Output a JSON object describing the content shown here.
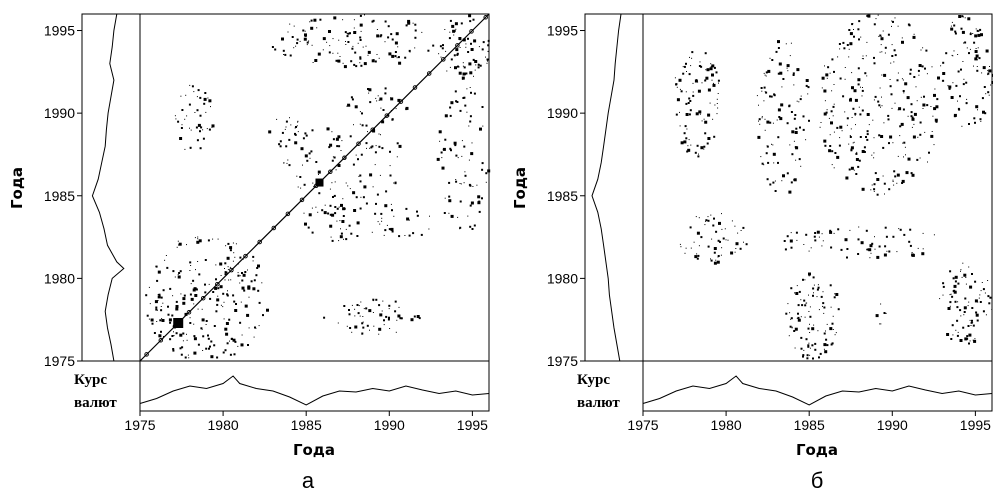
{
  "chart_data": [
    {
      "type": "heatmap",
      "panel_label": "а",
      "xlabel": "Года",
      "ylabel": "Года",
      "side_label_line1": "Курс",
      "side_label_line2": "валют",
      "xlim": [
        1975,
        1996
      ],
      "ylim": [
        1975,
        1996
      ],
      "x_ticks": [
        "1975",
        "1980",
        "1985",
        "1990",
        "1995"
      ],
      "y_ticks": [
        "1975",
        "1980",
        "1985",
        "1990",
        "1995"
      ],
      "legend": "none",
      "grid": false,
      "diagonal": true,
      "patches": [
        {
          "x0": 1975.3,
          "x1": 1982.6,
          "y0": 1975.1,
          "y1": 1982.6,
          "density": 0.35
        },
        {
          "x0": 1977.0,
          "x1": 1979.4,
          "y0": 1987.6,
          "y1": 1991.8,
          "density": 0.35
        },
        {
          "x0": 1982.7,
          "x1": 1984.6,
          "y0": 1987.8,
          "y1": 1990.4,
          "density": 0.3
        },
        {
          "x0": 1983.6,
          "x1": 1991.0,
          "y0": 1984.8,
          "y1": 1989.4,
          "density": 0.25
        },
        {
          "x0": 1983.9,
          "x1": 1992.8,
          "y0": 1982.2,
          "y1": 1984.6,
          "density": 0.3
        },
        {
          "x0": 1987.3,
          "x1": 1991.2,
          "y0": 1989.3,
          "y1": 1991.6,
          "density": 0.3
        },
        {
          "x0": 1982.8,
          "x1": 1992.8,
          "y0": 1992.9,
          "y1": 1996.0,
          "density": 0.35
        },
        {
          "x0": 1992.8,
          "x1": 1996.0,
          "y0": 1992.0,
          "y1": 1996.0,
          "density": 0.55
        },
        {
          "x0": 1992.8,
          "x1": 1996.0,
          "y0": 1982.8,
          "y1": 1991.7,
          "density": 0.25
        },
        {
          "x0": 1986.0,
          "x1": 1991.8,
          "y0": 1976.6,
          "y1": 1978.8,
          "density": 0.4
        }
      ],
      "left_series": [
        [
          1975.0,
          0.55
        ],
        [
          1976.0,
          0.5
        ],
        [
          1977.0,
          0.44
        ],
        [
          1978.0,
          0.4
        ],
        [
          1979.0,
          0.45
        ],
        [
          1980.0,
          0.52
        ],
        [
          1980.6,
          0.72
        ],
        [
          1981.0,
          0.6
        ],
        [
          1982.0,
          0.44
        ],
        [
          1983.0,
          0.38
        ],
        [
          1984.0,
          0.3
        ],
        [
          1985.0,
          0.18
        ],
        [
          1986.0,
          0.28
        ],
        [
          1987.0,
          0.34
        ],
        [
          1988.0,
          0.4
        ],
        [
          1989.0,
          0.42
        ],
        [
          1990.0,
          0.45
        ],
        [
          1991.0,
          0.5
        ],
        [
          1992.0,
          0.55
        ],
        [
          1993.0,
          0.48
        ],
        [
          1994.0,
          0.52
        ],
        [
          1995.0,
          0.55
        ],
        [
          1996.0,
          0.6
        ]
      ],
      "bottom_series": [
        [
          1975.0,
          0.85
        ],
        [
          1976.0,
          0.75
        ],
        [
          1977.0,
          0.6
        ],
        [
          1978.0,
          0.5
        ],
        [
          1979.0,
          0.55
        ],
        [
          1980.0,
          0.45
        ],
        [
          1980.6,
          0.3
        ],
        [
          1981.0,
          0.45
        ],
        [
          1982.0,
          0.55
        ],
        [
          1983.0,
          0.6
        ],
        [
          1984.0,
          0.72
        ],
        [
          1985.0,
          0.88
        ],
        [
          1986.0,
          0.7
        ],
        [
          1987.0,
          0.6
        ],
        [
          1988.0,
          0.62
        ],
        [
          1989.0,
          0.55
        ],
        [
          1990.0,
          0.6
        ],
        [
          1991.0,
          0.5
        ],
        [
          1992.0,
          0.58
        ],
        [
          1993.0,
          0.65
        ],
        [
          1994.0,
          0.6
        ],
        [
          1995.0,
          0.68
        ],
        [
          1996.0,
          0.65
        ]
      ]
    },
    {
      "type": "heatmap",
      "panel_label": "б",
      "xlabel": "Года",
      "ylabel": "Года",
      "side_label_line1": "Курс",
      "side_label_line2": "валют",
      "xlim": [
        1975,
        1996
      ],
      "ylim": [
        1975,
        1996
      ],
      "x_ticks": [
        "1975",
        "1980",
        "1985",
        "1990",
        "1995"
      ],
      "y_ticks": [
        "1975",
        "1980",
        "1985",
        "1990",
        "1995"
      ],
      "legend": "none",
      "grid": false,
      "diagonal": false,
      "patches": [
        {
          "x0": 1976.8,
          "x1": 1979.6,
          "y0": 1987.4,
          "y1": 1994.0,
          "density": 0.4
        },
        {
          "x0": 1977.0,
          "x1": 1981.3,
          "y0": 1981.0,
          "y1": 1984.2,
          "density": 0.35
        },
        {
          "x0": 1981.8,
          "x1": 1985.0,
          "y0": 1985.2,
          "y1": 1994.5,
          "density": 0.3
        },
        {
          "x0": 1983.2,
          "x1": 1992.9,
          "y0": 1981.2,
          "y1": 1983.3,
          "density": 0.3
        },
        {
          "x0": 1983.5,
          "x1": 1986.8,
          "y0": 1975.1,
          "y1": 1980.6,
          "density": 0.45
        },
        {
          "x0": 1988.8,
          "x1": 1989.6,
          "y0": 1977.2,
          "y1": 1978.6,
          "density": 0.4
        },
        {
          "x0": 1985.6,
          "x1": 1992.8,
          "y0": 1985.0,
          "y1": 1996.0,
          "density": 0.3
        },
        {
          "x0": 1992.8,
          "x1": 1996.0,
          "y0": 1976.0,
          "y1": 1981.0,
          "density": 0.45
        },
        {
          "x0": 1992.8,
          "x1": 1996.0,
          "y0": 1989.0,
          "y1": 1996.0,
          "density": 0.4
        }
      ],
      "left_series": [
        [
          1975.0,
          0.6
        ],
        [
          1976.0,
          0.55
        ],
        [
          1977.0,
          0.5
        ],
        [
          1978.0,
          0.46
        ],
        [
          1979.0,
          0.42
        ],
        [
          1980.0,
          0.4
        ],
        [
          1981.0,
          0.36
        ],
        [
          1982.0,
          0.32
        ],
        [
          1983.0,
          0.28
        ],
        [
          1984.0,
          0.22
        ],
        [
          1985.0,
          0.12
        ],
        [
          1986.0,
          0.22
        ],
        [
          1987.0,
          0.28
        ],
        [
          1988.0,
          0.32
        ],
        [
          1989.0,
          0.36
        ],
        [
          1990.0,
          0.4
        ],
        [
          1991.0,
          0.45
        ],
        [
          1992.0,
          0.5
        ],
        [
          1993.0,
          0.52
        ],
        [
          1994.0,
          0.55
        ],
        [
          1995.0,
          0.58
        ],
        [
          1996.0,
          0.62
        ]
      ],
      "bottom_series": [
        [
          1975.0,
          0.85
        ],
        [
          1976.0,
          0.75
        ],
        [
          1977.0,
          0.6
        ],
        [
          1978.0,
          0.5
        ],
        [
          1979.0,
          0.55
        ],
        [
          1980.0,
          0.45
        ],
        [
          1980.6,
          0.3
        ],
        [
          1981.0,
          0.45
        ],
        [
          1982.0,
          0.55
        ],
        [
          1983.0,
          0.6
        ],
        [
          1984.0,
          0.72
        ],
        [
          1985.0,
          0.88
        ],
        [
          1986.0,
          0.7
        ],
        [
          1987.0,
          0.6
        ],
        [
          1988.0,
          0.62
        ],
        [
          1989.0,
          0.55
        ],
        [
          1990.0,
          0.6
        ],
        [
          1991.0,
          0.5
        ],
        [
          1992.0,
          0.58
        ],
        [
          1993.0,
          0.65
        ],
        [
          1994.0,
          0.6
        ],
        [
          1995.0,
          0.68
        ],
        [
          1996.0,
          0.65
        ]
      ]
    }
  ]
}
